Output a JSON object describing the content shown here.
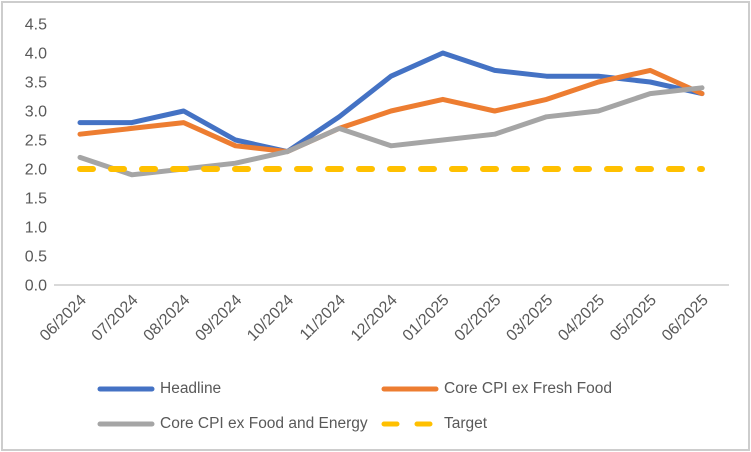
{
  "chart_data": {
    "type": "line",
    "title": "",
    "categories": [
      "06/2024",
      "07/2024",
      "08/2024",
      "09/2024",
      "10/2024",
      "11/2024",
      "12/2024",
      "01/2025",
      "02/2025",
      "03/2025",
      "04/2025",
      "05/2025",
      "06/2025"
    ],
    "series": [
      {
        "name": "Headline",
        "color": "#4472C4",
        "style": "solid",
        "values": [
          2.8,
          2.8,
          3.0,
          2.5,
          2.3,
          2.9,
          3.6,
          4.0,
          3.7,
          3.6,
          3.6,
          3.5,
          3.3
        ]
      },
      {
        "name": "Core CPI ex Fresh Food",
        "color": "#ED7D31",
        "style": "solid",
        "values": [
          2.6,
          2.7,
          2.8,
          2.4,
          2.3,
          2.7,
          3.0,
          3.2,
          3.0,
          3.2,
          3.5,
          3.7,
          3.3
        ]
      },
      {
        "name": "Core CPI ex Food and Energy",
        "color": "#A5A5A5",
        "style": "solid",
        "values": [
          2.2,
          1.9,
          2.0,
          2.1,
          2.3,
          2.7,
          2.4,
          2.5,
          2.6,
          2.9,
          3.0,
          3.3,
          3.4
        ]
      },
      {
        "name": "Target",
        "color": "#FFC000",
        "style": "dashed",
        "values": [
          2.0,
          2.0,
          2.0,
          2.0,
          2.0,
          2.0,
          2.0,
          2.0,
          2.0,
          2.0,
          2.0,
          2.0,
          2.0
        ]
      }
    ],
    "xlabel": "",
    "ylabel": "",
    "yaxis": {
      "min": 0.0,
      "max": 4.5,
      "step": 0.5,
      "tick_format": "one-decimal"
    },
    "xaxis": {
      "label_rotation": -45
    },
    "grid": false,
    "legend_position": "bottom"
  },
  "styling": {
    "text_color": "#595959",
    "axis_color": "#d9d9d9",
    "background": "#ffffff",
    "border_color": "#cdcdcd"
  }
}
